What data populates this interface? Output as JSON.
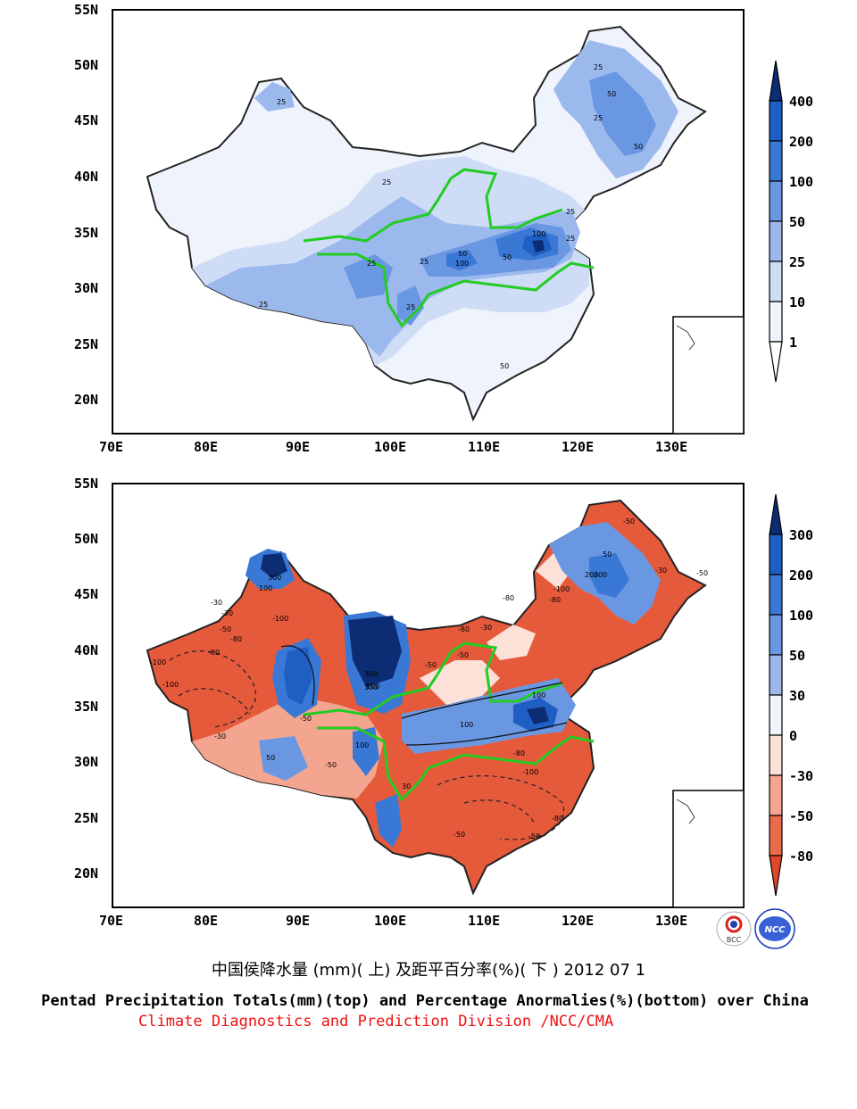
{
  "top_panel": {
    "lat_labels": [
      "55N",
      "50N",
      "45N",
      "40N",
      "35N",
      "30N",
      "25N",
      "20N"
    ],
    "lon_labels": [
      "70E",
      "80E",
      "90E",
      "100E",
      "110E",
      "120E",
      "130E"
    ],
    "colorbar_labels": [
      "400",
      "200",
      "100",
      "50",
      "25",
      "10",
      "1"
    ],
    "colorbar_colors": [
      "#0c2c74",
      "#1f5fc4",
      "#3a78d6",
      "#6a97e2",
      "#9cb9ee",
      "#cfdcf6",
      "#eef3fc"
    ],
    "contour_labels": [
      "25",
      "25",
      "50",
      "50",
      "25",
      "25",
      "25",
      "50",
      "100",
      "50",
      "100",
      "25",
      "25",
      "25",
      "50",
      "25",
      "25"
    ]
  },
  "bottom_panel": {
    "lat_labels": [
      "55N",
      "50N",
      "45N",
      "40N",
      "35N",
      "30N",
      "25N",
      "20N"
    ],
    "lon_labels": [
      "70E",
      "80E",
      "90E",
      "100E",
      "110E",
      "120E",
      "130E"
    ],
    "colorbar_labels": [
      "300",
      "200",
      "100",
      "50",
      "30",
      "0",
      "-30",
      "-50",
      "-80"
    ],
    "colorbar_colors": [
      "#0c2c74",
      "#1f5fc4",
      "#3a78d6",
      "#6a97e2",
      "#9cb9ee",
      "#eef3fc",
      "#fbe1d8",
      "#f4a58f",
      "#ea6a4c",
      "#e0472b"
    ],
    "contour_labels": [
      "300",
      "100",
      "-100",
      "-80",
      "-100",
      "-100",
      "-30",
      "-50",
      "300",
      "300",
      "200",
      "-80",
      "-50",
      "-30",
      "100",
      "-50",
      "100",
      "-50",
      "-80",
      "-50",
      "100",
      "50",
      "-30",
      "50",
      "-80",
      "-80",
      "-100",
      "-50",
      "-80",
      "100",
      "200",
      "-30",
      "-50",
      "30",
      "-30",
      "-80",
      "-100",
      "-50",
      "-50"
    ]
  },
  "caption_cn": "中国侯降水量 (mm)( 上) 及距平百分率(%)( 下 ) 2012 07 1",
  "caption_en": "Pentad Precipitation Totals(mm)(top) and Percentage Anormalies(%)(bottom) over China",
  "caption_credit": "Climate Diagnostics and Prediction Division /NCC/CMA",
  "logos": {
    "left": "BCC",
    "right": "NCC"
  }
}
